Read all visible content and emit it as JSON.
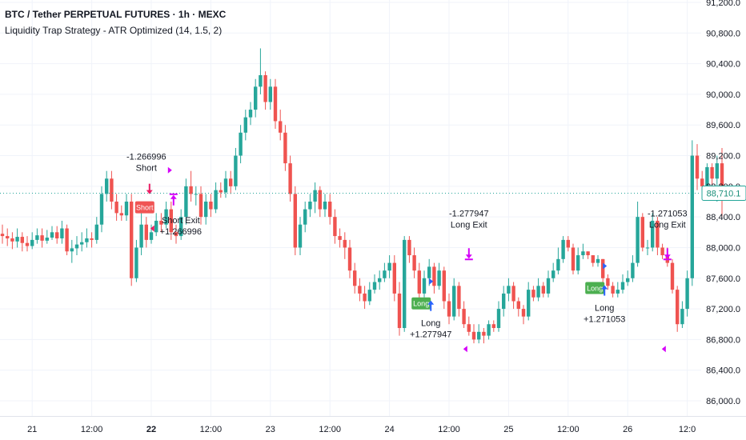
{
  "legend": {
    "title": "BTC / Tether PERPETUAL FUTURES · 1h · MEXC",
    "indicator": "Liquidity Trap Strategy - ATR Optimized (14, 1.5, 2)"
  },
  "colors": {
    "up": "#26a69a",
    "down": "#ef5350",
    "grid": "#f0f3fa",
    "text": "#131722",
    "long_tag": "#4caf50",
    "short_tag": "#f05454",
    "long_arrow": "#2962ff",
    "short_arrow": "#e91e63",
    "exit_arrow": "#d500f9",
    "price_tag": "#26a69a"
  },
  "chart_data": {
    "type": "candlestick",
    "ylim": [
      86000,
      91200
    ],
    "y_ticks": [
      "91,200.0",
      "90,800.0",
      "90,400.0",
      "90,000.0",
      "89,600.0",
      "89,200.0",
      "88,800.0",
      "88,400.0",
      "88,000.0",
      "87,600.0",
      "87,200.0",
      "86,800.0",
      "86,400.0",
      "86,000.0"
    ],
    "y_tick_values": [
      91200,
      90800,
      90400,
      90000,
      89600,
      89200,
      88800,
      88400,
      88000,
      87600,
      87200,
      86800,
      86400,
      86000
    ],
    "x_ticks": [
      {
        "label": "21",
        "index": 6,
        "bold": false
      },
      {
        "label": "12:00",
        "index": 18,
        "bold": false
      },
      {
        "label": "22",
        "index": 30,
        "bold": true
      },
      {
        "label": "12:00",
        "index": 42,
        "bold": false
      },
      {
        "label": "23",
        "index": 54,
        "bold": false
      },
      {
        "label": "12:00",
        "index": 66,
        "bold": false
      },
      {
        "label": "24",
        "index": 78,
        "bold": false
      },
      {
        "label": "12:00",
        "index": 90,
        "bold": false
      },
      {
        "label": "25",
        "index": 102,
        "bold": false
      },
      {
        "label": "12:00",
        "index": 114,
        "bold": false
      },
      {
        "label": "26",
        "index": 126,
        "bold": false
      },
      {
        "label": "12:0",
        "index": 138,
        "bold": false
      }
    ],
    "last_price": "88,710.1",
    "last_price_value": 88710.1,
    "closes": [
      88150,
      88120,
      88080,
      88140,
      88060,
      88020,
      88100,
      88160,
      88090,
      88130,
      88200,
      88120,
      88250,
      87950,
      87990,
      88040,
      88070,
      88120,
      88100,
      88300,
      88700,
      88900,
      88600,
      88450,
      88420,
      88600,
      87600,
      88000,
      88300,
      88100,
      88200,
      88350,
      88300,
      88500,
      88200,
      88150,
      88400,
      88800,
      88700,
      88700,
      88400,
      88600,
      88500,
      88750,
      88720,
      88900,
      88800,
      89200,
      89500,
      89700,
      89800,
      90100,
      90250,
      89900,
      90100,
      89650,
      89500,
      89100,
      88700,
      88000,
      88300,
      88500,
      88600,
      88750,
      88500,
      88600,
      88400,
      88150,
      88100,
      88000,
      87700,
      87500,
      87400,
      87300,
      87450,
      87550,
      87600,
      87700,
      87800,
      87400,
      86950,
      88100,
      87900,
      87700,
      87400,
      87600,
      87750,
      87500,
      87700,
      87300,
      87100,
      87500,
      87200,
      87000,
      86900,
      86800,
      86900,
      86850,
      87000,
      86950,
      87200,
      87400,
      87500,
      87300,
      87200,
      87100,
      87450,
      87350,
      87500,
      87400,
      87600,
      87700,
      87850,
      88100,
      88000,
      87700,
      87900,
      87950,
      87900,
      87800,
      87850,
      87600,
      87500,
      87400,
      87450,
      87550,
      87600,
      87800,
      88400,
      88000,
      88000,
      88350,
      88000,
      87900,
      87800,
      87450,
      87000,
      87200,
      87600,
      89200,
      88900,
      88800,
      89050,
      88900,
      89100,
      88710
    ],
    "opens": [
      88180,
      88150,
      88120,
      88080,
      88140,
      88060,
      88020,
      88100,
      88160,
      88090,
      88130,
      88200,
      88120,
      88250,
      87950,
      87990,
      88040,
      88070,
      88120,
      88100,
      88300,
      88700,
      88900,
      88600,
      88450,
      88420,
      88600,
      87600,
      88000,
      88300,
      88100,
      88200,
      88350,
      88300,
      88500,
      88200,
      88150,
      88400,
      88800,
      88700,
      88700,
      88400,
      88600,
      88500,
      88750,
      88720,
      88900,
      88800,
      89200,
      89500,
      89700,
      89800,
      90100,
      90250,
      89900,
      90100,
      89650,
      89500,
      89100,
      88700,
      88000,
      88300,
      88500,
      88600,
      88750,
      88500,
      88600,
      88400,
      88150,
      88100,
      88000,
      87700,
      87500,
      87400,
      87300,
      87450,
      87550,
      87600,
      87700,
      87800,
      87400,
      86950,
      88100,
      87900,
      87700,
      87400,
      87600,
      87750,
      87500,
      87700,
      87300,
      87100,
      87500,
      87200,
      87000,
      86900,
      86800,
      86900,
      86850,
      87000,
      86950,
      87200,
      87400,
      87500,
      87300,
      87200,
      87100,
      87450,
      87350,
      87500,
      87400,
      87600,
      87700,
      87850,
      88100,
      88000,
      87700,
      87900,
      87950,
      87900,
      87800,
      87850,
      87600,
      87500,
      87400,
      87450,
      87550,
      87600,
      87800,
      88400,
      88000,
      88000,
      88350,
      88000,
      87900,
      87800,
      87450,
      87000,
      87200,
      87600,
      89200,
      88900,
      88800,
      89050,
      88900,
      89100
    ],
    "highs": [
      88300,
      88250,
      88200,
      88250,
      88200,
      88150,
      88200,
      88250,
      88250,
      88230,
      88280,
      88280,
      88350,
      88300,
      88100,
      88150,
      88200,
      88250,
      88200,
      88400,
      88800,
      89000,
      89000,
      88700,
      88550,
      88700,
      88700,
      88100,
      88450,
      88400,
      88300,
      88450,
      88450,
      88600,
      88600,
      88300,
      88500,
      88900,
      89000,
      88800,
      88800,
      88700,
      88700,
      88850,
      88850,
      89000,
      89000,
      89300,
      89600,
      89800,
      89900,
      90200,
      90600,
      90300,
      90200,
      90200,
      89800,
      89600,
      89200,
      88800,
      88400,
      88600,
      88700,
      88850,
      88800,
      88700,
      88700,
      88500,
      88250,
      88200,
      88100,
      87800,
      87600,
      87500,
      87550,
      87650,
      87700,
      87800,
      87900,
      87900,
      87550,
      88150,
      88150,
      88000,
      87800,
      87700,
      87850,
      87800,
      87800,
      87750,
      87400,
      87600,
      87550,
      87300,
      87100,
      87000,
      87000,
      86950,
      87050,
      87050,
      87300,
      87500,
      87600,
      87550,
      87350,
      87250,
      87550,
      87500,
      87600,
      87550,
      87700,
      87800,
      88000,
      88150,
      88150,
      88050,
      88000,
      88050,
      87950,
      87900,
      87900,
      87850,
      87650,
      87550,
      87550,
      87650,
      87700,
      87900,
      88600,
      88450,
      88100,
      88450,
      88400,
      88050,
      88000,
      87850,
      87500,
      87300,
      87700,
      89400,
      89350,
      89000,
      89100,
      89100,
      89200,
      89300
    ],
    "lows": [
      88050,
      88020,
      87980,
      88000,
      87950,
      87950,
      87980,
      88050,
      88000,
      88050,
      88100,
      88050,
      88050,
      87900,
      87800,
      87900,
      87950,
      88000,
      88000,
      88050,
      88200,
      88600,
      88500,
      88350,
      88350,
      88350,
      87500,
      87550,
      87900,
      88000,
      88050,
      88150,
      88200,
      88250,
      88100,
      88050,
      88100,
      88300,
      88600,
      88550,
      88300,
      88300,
      88400,
      88450,
      88650,
      88650,
      88700,
      88750,
      89100,
      89400,
      89600,
      89700,
      90000,
      89800,
      89800,
      89550,
      89400,
      89000,
      88600,
      87900,
      87900,
      88200,
      88400,
      88450,
      88400,
      88400,
      88300,
      88050,
      88000,
      87850,
      87600,
      87400,
      87300,
      87200,
      87250,
      87400,
      87450,
      87550,
      87600,
      87300,
      86850,
      86900,
      87800,
      87600,
      87300,
      87350,
      87500,
      87400,
      87450,
      87200,
      87000,
      87050,
      87100,
      86950,
      86850,
      86750,
      86750,
      86750,
      86800,
      86900,
      86900,
      87100,
      87300,
      87200,
      87100,
      87000,
      87050,
      87300,
      87300,
      87350,
      87350,
      87550,
      87650,
      87800,
      87950,
      87650,
      87650,
      87850,
      87850,
      87750,
      87750,
      87550,
      87450,
      87350,
      87350,
      87400,
      87500,
      87550,
      87750,
      87950,
      87900,
      87950,
      87900,
      87850,
      87750,
      87400,
      86900,
      86950,
      87100,
      87500,
      88750,
      88700,
      88750,
      88800,
      88600,
      88400
    ]
  },
  "annotations": [
    {
      "index": 29,
      "type": "short_entry",
      "tag": "Short",
      "text_top": [
        "-1.266996",
        "Short"
      ],
      "price": 88520
    },
    {
      "index": 34,
      "type": "short_exit",
      "text_bottom": [
        "Short Exit",
        "+1.266996"
      ],
      "price": 88550
    },
    {
      "index": 86,
      "type": "long_entry",
      "tag": "Long",
      "text_bottom": [
        "Long",
        "+1.277947"
      ],
      "price": 87350
    },
    {
      "index": 94,
      "type": "long_exit",
      "text_top": [
        "-1.277947",
        "Long Exit"
      ],
      "price": 87950
    },
    {
      "index": 121,
      "type": "long_entry",
      "tag": "Long",
      "text_bottom": [
        "Long",
        "+1.271053"
      ],
      "price": 87550
    },
    {
      "index": 134,
      "type": "long_exit",
      "text_top": [
        "-1.271053",
        "Long Exit"
      ],
      "price": 87950
    }
  ]
}
